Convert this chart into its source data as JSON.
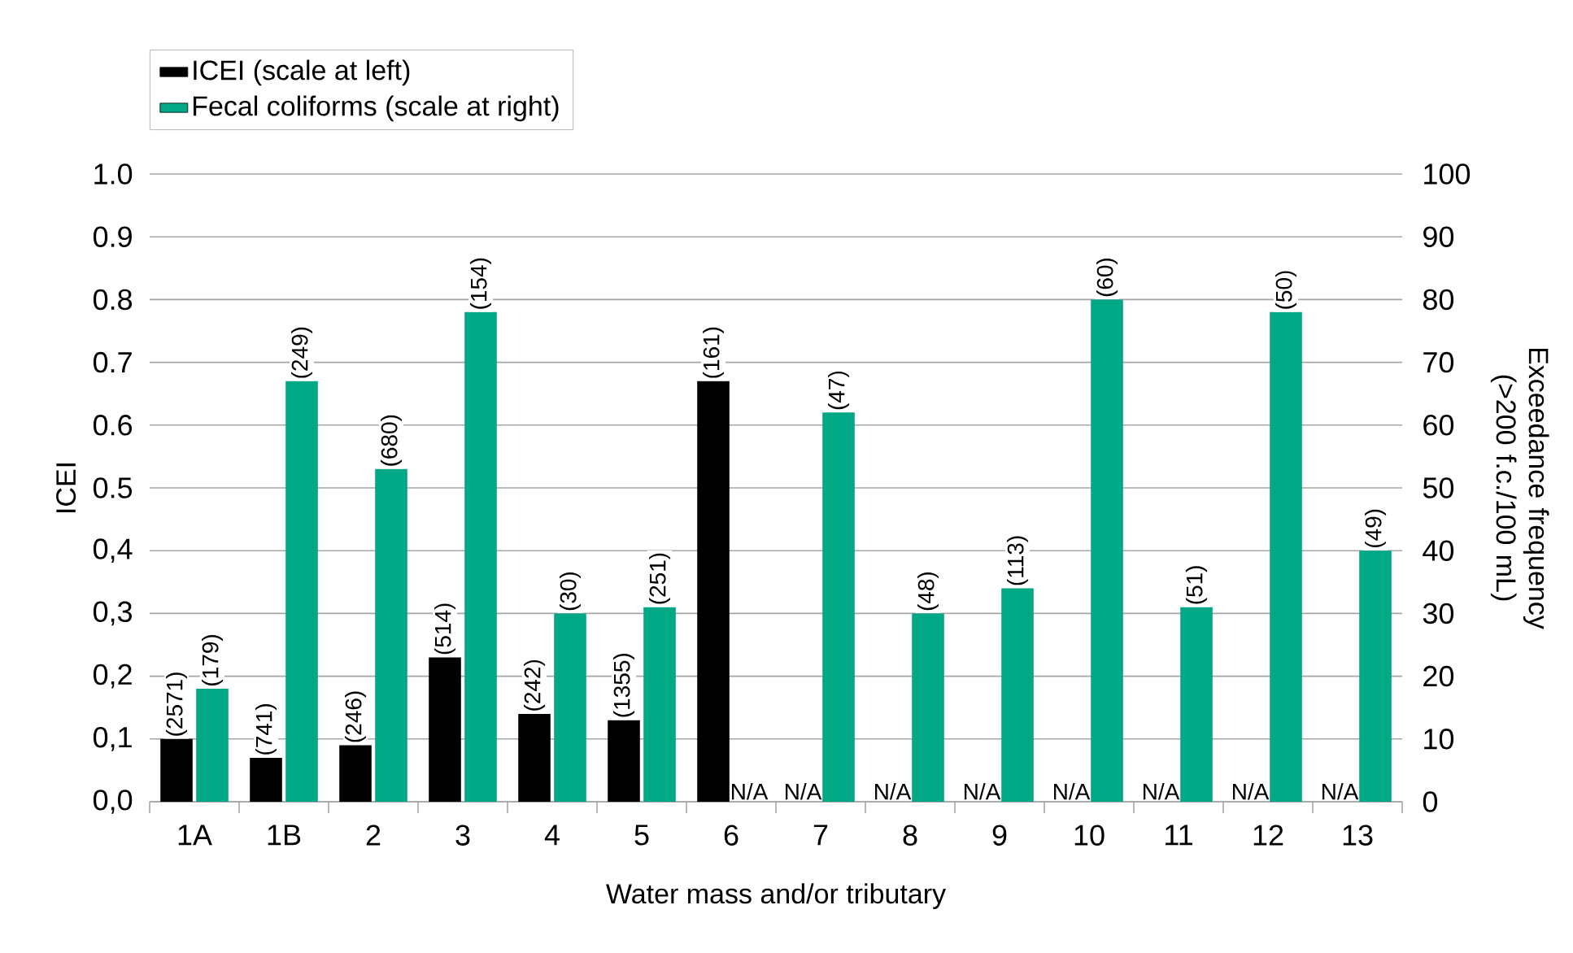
{
  "chart_data": {
    "type": "bar",
    "xlabel": "Water mass and/or tributary",
    "ylabel": "ICEI",
    "y2label": "Exceedance frequency (>200 f.c./100 mL)",
    "categories": [
      "1A",
      "1B",
      "2",
      "3",
      "4",
      "5",
      "6",
      "7",
      "8",
      "9",
      "10",
      "11",
      "12",
      "13"
    ],
    "series": [
      {
        "name": "ICEI (scale at left)",
        "color": "#000000",
        "values": [
          0.1,
          0.07,
          0.09,
          0.23,
          0.14,
          0.13,
          0.67,
          null,
          null,
          null,
          null,
          null,
          null,
          null
        ]
      },
      {
        "name": "Fecal coliforms (scale at right)",
        "color": "#00a886",
        "axis": "y2",
        "values": [
          18,
          67,
          53,
          78,
          30,
          31,
          null,
          62,
          30,
          34,
          80,
          31,
          78,
          40
        ]
      }
    ],
    "annotations": [
      {
        "text": "(2571)",
        "x": "1A",
        "y": 0.1
      },
      {
        "text": "(179)",
        "x": "1A",
        "y": 0.18
      },
      {
        "text": "(741)",
        "x": "1B",
        "y": 0.07
      },
      {
        "text": "(249)",
        "x": "1B",
        "y": 0.67
      },
      {
        "text": "(246)",
        "x": "2",
        "y": 0.09
      },
      {
        "text": "(680)",
        "x": "2",
        "y": 0.53
      },
      {
        "text": "(514)",
        "x": "3",
        "y": 0.23
      },
      {
        "text": "(154)",
        "x": "3",
        "y": 0.78
      },
      {
        "text": "(242)",
        "x": "4",
        "y": 0.14
      },
      {
        "text": "(30)",
        "x": "4",
        "y": 0.3
      },
      {
        "text": "(1355)",
        "x": "5",
        "y": 0.13
      },
      {
        "text": "(251)",
        "x": "5",
        "y": 0.31
      },
      {
        "text": "(161)",
        "x": "6",
        "y": 0.67
      },
      {
        "text": "N/A",
        "x": "6",
        "y": 0
      },
      {
        "text": "N/A",
        "x": "7",
        "y": 0
      },
      {
        "text": "(47)",
        "x": "7",
        "y": 0.62
      },
      {
        "text": "N/A",
        "x": "8",
        "y": 0
      },
      {
        "text": "(48)",
        "x": "8",
        "y": 0.3
      },
      {
        "text": "N/A",
        "x": "9",
        "y": 0
      },
      {
        "text": "(113)",
        "x": "9",
        "y": 0.34
      },
      {
        "text": "N/A",
        "x": "10",
        "y": 0
      },
      {
        "text": "(60)",
        "x": "10",
        "y": 0.8
      },
      {
        "text": "N/A",
        "x": "11",
        "y": 0
      },
      {
        "text": "(51)",
        "x": "11",
        "y": 0.31
      },
      {
        "text": "N/A",
        "x": "12",
        "y": 0
      },
      {
        "text": "(50)",
        "x": "12",
        "y": 0.78
      },
      {
        "text": "N/A",
        "x": "13",
        "y": 0
      },
      {
        "text": "(49)",
        "x": "13",
        "y": 0.4
      }
    ],
    "ylim": [
      0,
      1
    ],
    "yticks": [
      {
        "value": 0,
        "label": "0,0"
      },
      {
        "value": 0.1,
        "label": "0,1"
      },
      {
        "value": 0.2,
        "label": "0,2"
      },
      {
        "value": 0.3,
        "label": "0,3"
      },
      {
        "value": 0.4,
        "label": "0,4"
      },
      {
        "value": 0.5,
        "label": "0.5"
      },
      {
        "value": 0.6,
        "label": "0.6"
      },
      {
        "value": 0.7,
        "label": "0.7"
      },
      {
        "value": 0.8,
        "label": "0.8"
      },
      {
        "value": 0.9,
        "label": "0.9"
      },
      {
        "value": 1,
        "label": "1.0"
      }
    ],
    "y2lim": [
      0,
      100
    ],
    "y2ticks": [
      0,
      10,
      20,
      30,
      40,
      50,
      60,
      70,
      80,
      90,
      100
    ],
    "grid": "y",
    "legend": "top left"
  }
}
